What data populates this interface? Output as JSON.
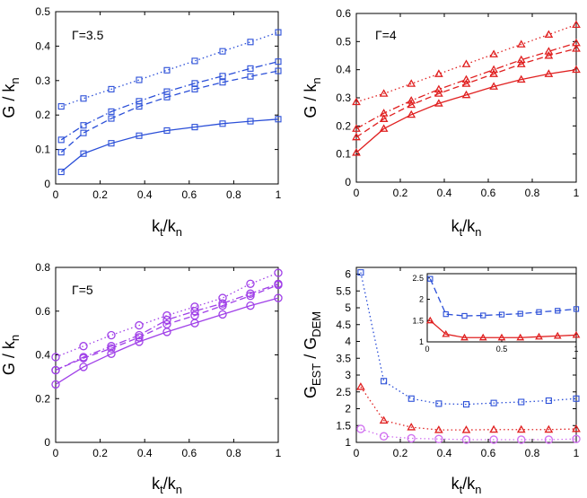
{
  "chart_data": [
    {
      "type": "line",
      "panel_label": "Γ=3.5",
      "xlabel": "k_t/k_n",
      "ylabel": "G / k_n",
      "xlim": [
        0,
        1
      ],
      "ylim": [
        0,
        0.5
      ],
      "xticks": [
        0,
        0.2,
        0.4,
        0.6,
        0.8,
        1
      ],
      "yticks": [
        0,
        0.1,
        0.2,
        0.3,
        0.4,
        0.5
      ],
      "xtick_labels": [
        "0",
        "0.2",
        "0.4",
        "0.6",
        "0.8",
        "1"
      ],
      "ytick_labels": [
        "0",
        "0.1",
        "0.2",
        "0.3",
        "0.4",
        "0.5"
      ],
      "color": "#2b4fd8",
      "marker": "square",
      "x": [
        0.025,
        0.125,
        0.25,
        0.375,
        0.5,
        0.625,
        0.75,
        0.875,
        1.0
      ],
      "series": [
        {
          "name": "dotted",
          "line_style": "dotted",
          "values": [
            0.225,
            0.248,
            0.275,
            0.302,
            0.33,
            0.357,
            0.385,
            0.412,
            0.44
          ]
        },
        {
          "name": "dashdot",
          "line_style": "dashdot",
          "values": [
            0.128,
            0.17,
            0.21,
            0.24,
            0.268,
            0.292,
            0.313,
            0.335,
            0.355
          ]
        },
        {
          "name": "dashed",
          "line_style": "dashed",
          "values": [
            0.092,
            0.148,
            0.19,
            0.225,
            0.252,
            0.275,
            0.295,
            0.312,
            0.328
          ]
        },
        {
          "name": "solid",
          "line_style": "solid",
          "values": [
            0.035,
            0.088,
            0.118,
            0.14,
            0.155,
            0.165,
            0.175,
            0.182,
            0.188
          ]
        }
      ]
    },
    {
      "type": "line",
      "panel_label": "Γ=4",
      "xlabel": "k_t/k_n",
      "ylabel": "G / k_n",
      "xlim": [
        0,
        1
      ],
      "ylim": [
        0,
        0.6
      ],
      "xticks": [
        0,
        0.2,
        0.4,
        0.6,
        0.8,
        1
      ],
      "yticks": [
        0,
        0.1,
        0.2,
        0.3,
        0.4,
        0.5,
        0.6
      ],
      "xtick_labels": [
        "0",
        "0.2",
        "0.4",
        "0.6",
        "0.8",
        "1"
      ],
      "ytick_labels": [
        "0",
        "0.1",
        "0.2",
        "0.3",
        "0.4",
        "0.5",
        "0.6"
      ],
      "color": "#e02020",
      "marker": "triangle",
      "x": [
        0,
        0.125,
        0.25,
        0.375,
        0.5,
        0.625,
        0.75,
        0.875,
        1.0
      ],
      "series": [
        {
          "name": "dotted",
          "line_style": "dotted",
          "values": [
            0.285,
            0.315,
            0.35,
            0.385,
            0.42,
            0.455,
            0.49,
            0.525,
            0.56
          ]
        },
        {
          "name": "dashdot",
          "line_style": "dashdot",
          "values": [
            0.19,
            0.245,
            0.29,
            0.33,
            0.365,
            0.4,
            0.435,
            0.465,
            0.495
          ]
        },
        {
          "name": "dashed",
          "line_style": "dashed",
          "values": [
            0.16,
            0.225,
            0.275,
            0.315,
            0.35,
            0.385,
            0.42,
            0.45,
            0.475
          ]
        },
        {
          "name": "solid",
          "line_style": "solid",
          "values": [
            0.105,
            0.19,
            0.24,
            0.28,
            0.31,
            0.34,
            0.365,
            0.385,
            0.4
          ]
        }
      ]
    },
    {
      "type": "line",
      "panel_label": "Γ=5",
      "xlabel": "k_t/k_n",
      "ylabel": "G / k_n",
      "xlim": [
        0,
        1
      ],
      "ylim": [
        0,
        0.8
      ],
      "xticks": [
        0,
        0.2,
        0.4,
        0.6,
        0.8,
        1
      ],
      "yticks": [
        0,
        0.2,
        0.4,
        0.6,
        0.8
      ],
      "xtick_labels": [
        "0",
        "0.2",
        "0.4",
        "0.6",
        "0.8",
        "1"
      ],
      "ytick_labels": [
        "0",
        "0.2",
        "0.4",
        "0.6",
        "0.8"
      ],
      "color": "#a040e8",
      "marker": "circle",
      "x": [
        0,
        0.125,
        0.25,
        0.375,
        0.5,
        0.625,
        0.75,
        0.875,
        1.0
      ],
      "series": [
        {
          "name": "dotted",
          "line_style": "dotted",
          "values": [
            0.39,
            0.44,
            0.49,
            0.535,
            0.58,
            0.62,
            0.66,
            0.725,
            0.775
          ]
        },
        {
          "name": "dashdot",
          "line_style": "dashdot",
          "values": [
            0.33,
            0.39,
            0.44,
            0.49,
            0.56,
            0.6,
            0.635,
            0.68,
            0.725
          ]
        },
        {
          "name": "dashed",
          "line_style": "dashed",
          "values": [
            0.33,
            0.385,
            0.43,
            0.48,
            0.54,
            0.58,
            0.625,
            0.67,
            0.72
          ]
        },
        {
          "name": "solid",
          "line_style": "solid",
          "values": [
            0.265,
            0.345,
            0.405,
            0.46,
            0.505,
            0.545,
            0.585,
            0.625,
            0.66
          ]
        }
      ]
    },
    {
      "type": "line",
      "panel_label": "",
      "xlabel": "k_t/k_n",
      "ylabel": "G_EST / G_DEM",
      "xlim": [
        0,
        1
      ],
      "ylim": [
        1,
        6.2
      ],
      "xticks": [
        0,
        0.2,
        0.4,
        0.6,
        0.8,
        1
      ],
      "yticks": [
        1,
        1.5,
        2,
        2.5,
        3,
        3.5,
        4,
        4.5,
        5,
        5.5,
        6
      ],
      "xtick_labels": [
        "0",
        "0.2",
        "0.4",
        "0.6",
        "0.8",
        "1"
      ],
      "ytick_labels": [
        "1",
        "1.5",
        "2",
        "2.5",
        "3",
        "3.5",
        "4",
        "4.5",
        "5",
        "5.5",
        "6"
      ],
      "x": [
        0.02,
        0.125,
        0.25,
        0.375,
        0.5,
        0.625,
        0.75,
        0.875,
        1.0
      ],
      "series": [
        {
          "name": "blue",
          "color": "#2b4fd8",
          "marker": "square",
          "line_style": "dotted",
          "values": [
            6.05,
            2.82,
            2.3,
            2.15,
            2.13,
            2.17,
            2.2,
            2.24,
            2.3
          ]
        },
        {
          "name": "red",
          "color": "#e02020",
          "marker": "triangle",
          "line_style": "dotted",
          "values": [
            2.65,
            1.65,
            1.45,
            1.37,
            1.37,
            1.38,
            1.38,
            1.38,
            1.4
          ]
        },
        {
          "name": "violet",
          "color": "#d070f0",
          "marker": "circle",
          "line_style": "dotted",
          "values": [
            1.4,
            1.18,
            1.12,
            1.1,
            1.08,
            1.08,
            1.08,
            1.08,
            1.1
          ]
        }
      ],
      "inset": {
        "xlim": [
          0,
          1
        ],
        "ylim": [
          1,
          2.6
        ],
        "xticks": [
          0,
          0.5,
          1
        ],
        "yticks": [
          1,
          1.5,
          2,
          2.5
        ],
        "xtick_labels": [
          "0",
          "0.5",
          "1"
        ],
        "ytick_labels": [
          "1",
          "1.5",
          "2",
          "2.5"
        ],
        "x": [
          0.02,
          0.125,
          0.25,
          0.375,
          0.5,
          0.625,
          0.75,
          0.875,
          1.0
        ],
        "series": [
          {
            "name": "blue",
            "color": "#2b4fd8",
            "marker": "square",
            "line_style": "dashed",
            "values": [
              2.48,
              1.65,
              1.61,
              1.62,
              1.64,
              1.66,
              1.7,
              1.73,
              1.77
            ]
          },
          {
            "name": "red",
            "color": "#e02020",
            "marker": "triangle",
            "line_style": "solid",
            "values": [
              1.5,
              1.18,
              1.1,
              1.1,
              1.1,
              1.1,
              1.12,
              1.14,
              1.16
            ]
          }
        ]
      }
    }
  ]
}
